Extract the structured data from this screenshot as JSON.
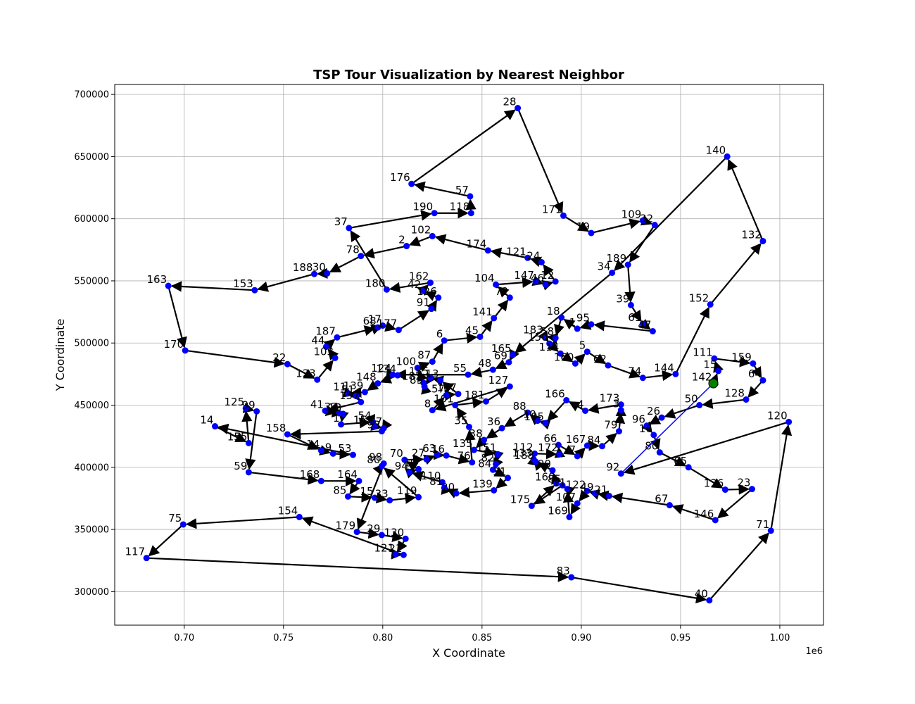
{
  "chart_data": {
    "type": "scatter",
    "title": "TSP Tour Visualization by Nearest Neighbor",
    "xlabel": "X Coordinate",
    "ylabel": "Y Coordinate",
    "x_offset_label": "1e6",
    "xlim": [
      665000,
      1022000
    ],
    "ylim": [
      273000,
      708000
    ],
    "x_ticks": [
      700000,
      750000,
      800000,
      850000,
      900000,
      950000,
      1000000
    ],
    "x_tick_labels": [
      "0.70",
      "0.75",
      "0.80",
      "0.85",
      "0.90",
      "0.95",
      "1.00"
    ],
    "y_ticks": [
      300000,
      350000,
      400000,
      450000,
      500000,
      550000,
      600000,
      650000,
      700000
    ],
    "y_tick_labels": [
      "300000",
      "350000",
      "400000",
      "450000",
      "500000",
      "550000",
      "600000",
      "650000",
      "700000"
    ],
    "grid": true,
    "colors": {
      "node": "#0000ff",
      "edge": "#000000",
      "start_node": "#008000",
      "closing_edge": "#0000ff"
    },
    "start_node": "142",
    "nodes": [
      {
        "id": "142",
        "x": 966500,
        "y": 467500
      },
      {
        "id": "15",
        "x": 969000,
        "y": 477500
      },
      {
        "id": "111",
        "x": 967000,
        "y": 487500
      },
      {
        "id": "159",
        "x": 986500,
        "y": 483500
      },
      {
        "id": "64",
        "x": 991500,
        "y": 470000
      },
      {
        "id": "128",
        "x": 983000,
        "y": 454500
      },
      {
        "id": "50",
        "x": 959500,
        "y": 450000
      },
      {
        "id": "26",
        "x": 940500,
        "y": 440000
      },
      {
        "id": "96",
        "x": 933000,
        "y": 433500
      },
      {
        "id": "16",
        "x": 936500,
        "y": 426000
      },
      {
        "id": "80",
        "x": 939500,
        "y": 412000
      },
      {
        "id": "65",
        "x": 954000,
        "y": 400000
      },
      {
        "id": "136",
        "x": 972500,
        "y": 382000
      },
      {
        "id": "23",
        "x": 986000,
        "y": 382500
      },
      {
        "id": "146",
        "x": 967500,
        "y": 357500
      },
      {
        "id": "67",
        "x": 944500,
        "y": 369500
      },
      {
        "id": "21",
        "x": 914000,
        "y": 377000
      },
      {
        "id": "49",
        "x": 907000,
        "y": 379000
      },
      {
        "id": "122",
        "x": 903000,
        "y": 381000
      },
      {
        "id": "107",
        "x": 898000,
        "y": 371000
      },
      {
        "id": "169",
        "x": 894000,
        "y": 360000
      },
      {
        "id": "11",
        "x": 893000,
        "y": 382500
      },
      {
        "id": "85b",
        "label": "85",
        "x": 890500,
        "y": 385500
      },
      {
        "id": "175",
        "x": 875000,
        "y": 369000
      },
      {
        "id": "160",
        "x": 887500,
        "y": 387000
      },
      {
        "id": "90",
        "x": 885500,
        "y": 397500
      },
      {
        "id": "188b",
        "label": "188",
        "x": 877000,
        "y": 404500
      },
      {
        "id": "133",
        "x": 876000,
        "y": 406500
      },
      {
        "id": "112",
        "x": 876500,
        "y": 411000
      },
      {
        "id": "172",
        "x": 889000,
        "y": 410500
      },
      {
        "id": "66",
        "x": 888500,
        "y": 418000
      },
      {
        "id": "7",
        "x": 898000,
        "y": 409000
      },
      {
        "id": "167",
        "x": 903000,
        "y": 417500
      },
      {
        "id": "84",
        "x": 910500,
        "y": 417000
      },
      {
        "id": "79",
        "x": 919000,
        "y": 429000
      },
      {
        "id": "3",
        "x": 920000,
        "y": 446000
      },
      {
        "id": "173",
        "x": 920000,
        "y": 450500
      },
      {
        "id": "4",
        "x": 902000,
        "y": 445500
      },
      {
        "id": "166",
        "x": 892500,
        "y": 454000
      },
      {
        "id": "105",
        "x": 882000,
        "y": 435500
      },
      {
        "id": "10",
        "x": 878000,
        "y": 437500
      },
      {
        "id": "88",
        "x": 873000,
        "y": 444000
      },
      {
        "id": "36",
        "x": 860000,
        "y": 431500
      },
      {
        "id": "38",
        "x": 851000,
        "y": 422000
      },
      {
        "id": "135",
        "x": 846000,
        "y": 414000
      },
      {
        "id": "151",
        "x": 858000,
        "y": 410500
      },
      {
        "id": "82",
        "x": 857000,
        "y": 402500
      },
      {
        "id": "84b",
        "label": "84",
        "x": 855500,
        "y": 398000
      },
      {
        "id": "31",
        "x": 863000,
        "y": 391500
      },
      {
        "id": "139",
        "x": 856000,
        "y": 381500
      },
      {
        "id": "20",
        "x": 837000,
        "y": 379000
      },
      {
        "id": "81",
        "x": 831000,
        "y": 383500
      },
      {
        "id": "110",
        "x": 830000,
        "y": 388000
      },
      {
        "id": "94",
        "x": 813500,
        "y": 396000
      },
      {
        "id": "19",
        "x": 818000,
        "y": 398500
      },
      {
        "id": "70",
        "x": 811000,
        "y": 406000
      },
      {
        "id": "27",
        "x": 822000,
        "y": 406500
      },
      {
        "id": "63",
        "x": 827500,
        "y": 410000
      },
      {
        "id": "16b",
        "label": "16",
        "x": 832000,
        "y": 409500
      },
      {
        "id": "76",
        "x": 845000,
        "y": 404000
      },
      {
        "id": "35",
        "x": 843500,
        "y": 432500
      },
      {
        "id": "101",
        "x": 836500,
        "y": 450000
      },
      {
        "id": "181",
        "x": 852000,
        "y": 453000
      },
      {
        "id": "127",
        "x": 864000,
        "y": 465000
      },
      {
        "id": "8",
        "x": 825000,
        "y": 446000
      },
      {
        "id": "57b",
        "label": "57",
        "x": 832000,
        "y": 458000
      },
      {
        "id": "167b",
        "label": "167",
        "x": 838000,
        "y": 459000
      },
      {
        "id": "13",
        "x": 829000,
        "y": 470000
      },
      {
        "id": "185",
        "x": 824000,
        "y": 472000
      },
      {
        "id": "89",
        "x": 821000,
        "y": 465000
      },
      {
        "id": "183b",
        "label": "183",
        "x": 820500,
        "y": 468000
      },
      {
        "id": "100",
        "x": 817500,
        "y": 480000
      },
      {
        "id": "87",
        "x": 825000,
        "y": 485000
      },
      {
        "id": "6",
        "x": 831000,
        "y": 502000
      },
      {
        "id": "45",
        "x": 849000,
        "y": 505000
      },
      {
        "id": "141",
        "x": 856000,
        "y": 520000
      },
      {
        "id": "72",
        "x": 864000,
        "y": 536500
      },
      {
        "id": "104",
        "x": 857000,
        "y": 547000
      },
      {
        "id": "147",
        "x": 877000,
        "y": 549500
      },
      {
        "id": "46",
        "x": 882000,
        "y": 547000
      },
      {
        "id": "12",
        "x": 887000,
        "y": 549500
      },
      {
        "id": "24",
        "x": 880000,
        "y": 565000
      },
      {
        "id": "121",
        "x": 873000,
        "y": 568500
      },
      {
        "id": "174",
        "x": 853000,
        "y": 574500
      },
      {
        "id": "102",
        "x": 825000,
        "y": 586000
      },
      {
        "id": "2",
        "x": 812000,
        "y": 578000
      },
      {
        "id": "78",
        "x": 789000,
        "y": 570000
      },
      {
        "id": "30",
        "x": 772000,
        "y": 556000
      },
      {
        "id": "188",
        "x": 765500,
        "y": 555500
      },
      {
        "id": "153",
        "x": 735500,
        "y": 542500
      },
      {
        "id": "163",
        "x": 692000,
        "y": 546000
      },
      {
        "id": "170",
        "x": 700500,
        "y": 494000
      },
      {
        "id": "22",
        "x": 752000,
        "y": 483000
      },
      {
        "id": "123",
        "x": 767000,
        "y": 470500
      },
      {
        "id": "103",
        "x": 776000,
        "y": 488000
      },
      {
        "id": "44",
        "x": 771500,
        "y": 497000
      },
      {
        "id": "187",
        "x": 777000,
        "y": 504500
      },
      {
        "id": "68",
        "x": 797500,
        "y": 512500
      },
      {
        "id": "17",
        "x": 800000,
        "y": 514000
      },
      {
        "id": "177",
        "x": 808000,
        "y": 510500
      },
      {
        "id": "91",
        "x": 824500,
        "y": 527500
      },
      {
        "id": "126",
        "x": 828000,
        "y": 536500
      },
      {
        "id": "42",
        "x": 820000,
        "y": 542000
      },
      {
        "id": "162",
        "x": 824000,
        "y": 548500
      },
      {
        "id": "180",
        "x": 802000,
        "y": 543000
      },
      {
        "id": "37",
        "x": 783000,
        "y": 592500
      },
      {
        "id": "190",
        "x": 826000,
        "y": 604500
      },
      {
        "id": "118",
        "x": 844500,
        "y": 604500
      },
      {
        "id": "57",
        "x": 844000,
        "y": 618000
      },
      {
        "id": "176",
        "x": 814500,
        "y": 628000
      },
      {
        "id": "28",
        "x": 868000,
        "y": 689000
      },
      {
        "id": "171",
        "x": 891000,
        "y": 602500
      },
      {
        "id": "19b",
        "label": "19",
        "x": 905000,
        "y": 588500
      },
      {
        "id": "109",
        "x": 931000,
        "y": 598500
      },
      {
        "id": "32",
        "x": 937000,
        "y": 595000
      },
      {
        "id": "189",
        "x": 923500,
        "y": 563000
      },
      {
        "id": "39",
        "x": 925000,
        "y": 530500
      },
      {
        "id": "61",
        "x": 931000,
        "y": 515500
      },
      {
        "id": "47",
        "x": 936000,
        "y": 509500
      },
      {
        "id": "95",
        "x": 905000,
        "y": 515000
      },
      {
        "id": "1",
        "x": 898000,
        "y": 511500
      },
      {
        "id": "18",
        "x": 890000,
        "y": 520500
      },
      {
        "id": "58",
        "x": 887000,
        "y": 504000
      },
      {
        "id": "183",
        "x": 881500,
        "y": 505500
      },
      {
        "id": "150",
        "x": 884000,
        "y": 499500
      },
      {
        "id": "114",
        "x": 889500,
        "y": 491500
      },
      {
        "id": "160b",
        "label": "160",
        "x": 897000,
        "y": 483500
      },
      {
        "id": "5",
        "x": 903000,
        "y": 493000
      },
      {
        "id": "62",
        "x": 913500,
        "y": 482000
      },
      {
        "id": "74",
        "x": 931000,
        "y": 472000
      },
      {
        "id": "144",
        "x": 947500,
        "y": 475000
      },
      {
        "id": "152",
        "x": 965000,
        "y": 531000
      },
      {
        "id": "132",
        "x": 991500,
        "y": 582000
      },
      {
        "id": "140",
        "x": 973500,
        "y": 650000
      },
      {
        "id": "34",
        "x": 915500,
        "y": 556500
      },
      {
        "id": "165",
        "x": 865500,
        "y": 490500
      },
      {
        "id": "69",
        "x": 863500,
        "y": 484500
      },
      {
        "id": "48",
        "x": 855500,
        "y": 478500
      },
      {
        "id": "55",
        "x": 843000,
        "y": 474500
      },
      {
        "id": "124",
        "x": 805000,
        "y": 474500
      },
      {
        "id": "134",
        "x": 807500,
        "y": 474000
      },
      {
        "id": "148",
        "x": 797500,
        "y": 467500
      },
      {
        "id": "139b",
        "label": "139",
        "x": 791000,
        "y": 460500
      },
      {
        "id": "11b",
        "label": "11",
        "x": 782500,
        "y": 459500
      },
      {
        "id": "51",
        "x": 786500,
        "y": 457500
      },
      {
        "id": "157",
        "x": 789000,
        "y": 452500
      },
      {
        "id": "41",
        "x": 771000,
        "y": 445500
      },
      {
        "id": "33",
        "x": 778000,
        "y": 443500
      },
      {
        "id": "13b",
        "label": "13",
        "x": 780000,
        "y": 443000
      },
      {
        "id": "1b",
        "label": "1",
        "x": 779000,
        "y": 434500
      },
      {
        "id": "54",
        "x": 795000,
        "y": 436500
      },
      {
        "id": "152b",
        "label": "152",
        "x": 796000,
        "y": 433000
      },
      {
        "id": "57c",
        "label": "57",
        "x": 800500,
        "y": 431500
      },
      {
        "id": "93",
        "x": 799500,
        "y": 429000
      },
      {
        "id": "158",
        "x": 752000,
        "y": 426500
      },
      {
        "id": "14",
        "x": 715500,
        "y": 433000
      },
      {
        "id": "155",
        "x": 732500,
        "y": 419500
      },
      {
        "id": "125",
        "x": 731000,
        "y": 447500
      },
      {
        "id": "99",
        "x": 736500,
        "y": 445000
      },
      {
        "id": "59",
        "x": 732500,
        "y": 396000
      },
      {
        "id": "168",
        "x": 769000,
        "y": 389000
      },
      {
        "id": "164",
        "x": 788000,
        "y": 389000
      },
      {
        "id": "85",
        "x": 782500,
        "y": 376500
      },
      {
        "id": "15b",
        "label": "15",
        "x": 796000,
        "y": 375500
      },
      {
        "id": "33b",
        "label": "33",
        "x": 803500,
        "y": 373500
      },
      {
        "id": "119",
        "x": 818000,
        "y": 376000
      },
      {
        "id": "80b",
        "label": "80",
        "x": 799500,
        "y": 401000
      },
      {
        "id": "98",
        "x": 800500,
        "y": 403000
      },
      {
        "id": "179",
        "x": 787000,
        "y": 348000
      },
      {
        "id": "29",
        "x": 799500,
        "y": 345500
      },
      {
        "id": "130",
        "x": 811500,
        "y": 342500
      },
      {
        "id": "121b",
        "label": "121",
        "x": 806500,
        "y": 330000
      },
      {
        "id": "21b",
        "label": "21",
        "x": 810500,
        "y": 329500
      },
      {
        "id": "154",
        "x": 758000,
        "y": 360000
      },
      {
        "id": "75",
        "x": 699500,
        "y": 354000
      },
      {
        "id": "117",
        "x": 681000,
        "y": 327000
      },
      {
        "id": "83",
        "x": 895000,
        "y": 311500
      },
      {
        "id": "40",
        "x": 964500,
        "y": 293000
      },
      {
        "id": "71",
        "x": 995500,
        "y": 349000
      },
      {
        "id": "120",
        "x": 1004500,
        "y": 436500
      },
      {
        "id": "92",
        "x": 920000,
        "y": 395000
      },
      {
        "id": "146b",
        "label": "14",
        "x": 769000,
        "y": 413500
      },
      {
        "id": "53",
        "x": 785000,
        "y": 410000
      },
      {
        "id": "9",
        "x": 775000,
        "y": 411000
      }
    ],
    "tour": [
      "142",
      "15",
      "111",
      "159",
      "64",
      "128",
      "50",
      "26",
      "96",
      "16",
      "80",
      "65",
      "136",
      "23",
      "146",
      "67",
      "21",
      "49",
      "122",
      "107",
      "169",
      "11",
      "85b",
      "175",
      "160",
      "90",
      "188b",
      "133",
      "112",
      "172",
      "66",
      "7",
      "167",
      "84",
      "79",
      "3",
      "173",
      "4",
      "166",
      "105",
      "10",
      "88",
      "36",
      "38",
      "135",
      "151",
      "82",
      "84b",
      "31",
      "139",
      "20",
      "81",
      "110",
      "94",
      "19",
      "70",
      "27",
      "63",
      "16b",
      "76",
      "35",
      "101",
      "181",
      "127",
      "8",
      "57b",
      "167b",
      "13",
      "185",
      "89",
      "183b",
      "100",
      "87",
      "6",
      "45",
      "141",
      "72",
      "104",
      "147",
      "46",
      "12",
      "24",
      "121",
      "174",
      "102",
      "2",
      "78",
      "30",
      "188",
      "153",
      "163",
      "170",
      "22",
      "123",
      "103",
      "44",
      "187",
      "68",
      "17",
      "177",
      "91",
      "126",
      "42",
      "162",
      "180",
      "37",
      "190",
      "118",
      "57",
      "176",
      "28",
      "171",
      "19b",
      "109",
      "32",
      "189",
      "39",
      "61",
      "47",
      "95",
      "1",
      "18",
      "58",
      "183",
      "150",
      "114",
      "160b",
      "5",
      "62",
      "74",
      "144",
      "152",
      "132",
      "140",
      "34",
      "165",
      "69",
      "48",
      "55",
      "124",
      "134",
      "148",
      "139b",
      "11b",
      "51",
      "157",
      "41",
      "33",
      "13b",
      "1b",
      "54",
      "152b",
      "57c",
      "93",
      "158",
      "146b",
      "9",
      "53",
      "14",
      "155",
      "125",
      "99",
      "59",
      "168",
      "164",
      "85",
      "15b",
      "33b",
      "119",
      "80b",
      "98",
      "179",
      "29",
      "130",
      "121b",
      "21b",
      "154",
      "75",
      "117",
      "83",
      "40",
      "71",
      "120",
      "92"
    ]
  }
}
